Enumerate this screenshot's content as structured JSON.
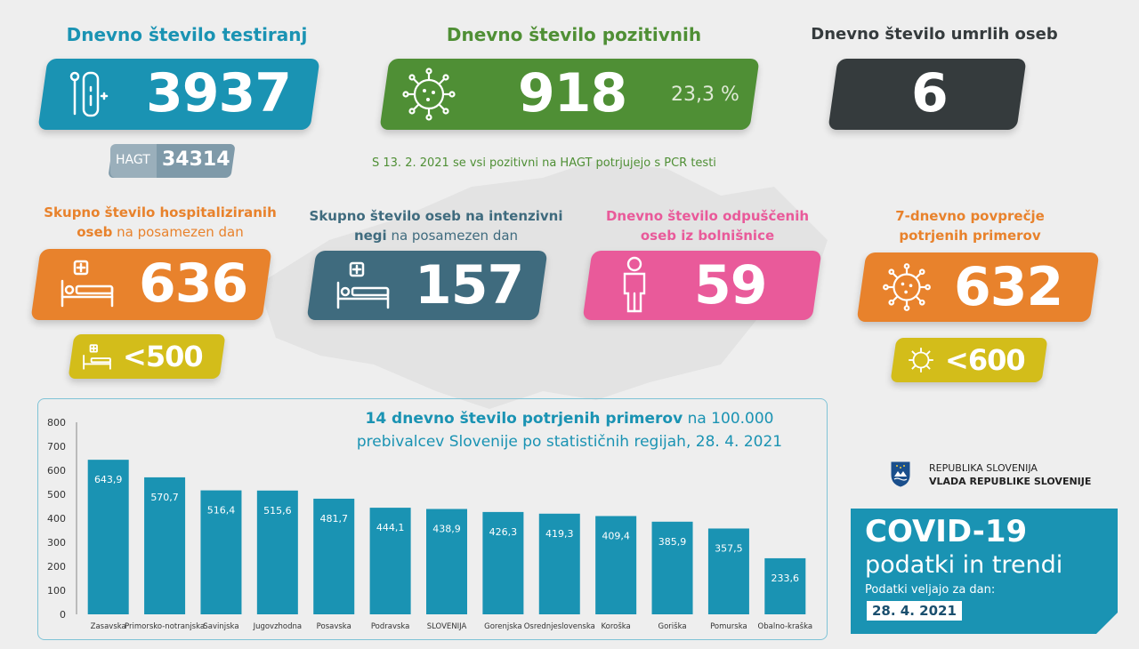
{
  "colors": {
    "blue": "#1a93b3",
    "green": "#4f8f35",
    "dark": "#353b3d",
    "orange": "#e8822c",
    "slate": "#3f6b7e",
    "pink": "#e95a9a",
    "yellow": "#d3bd1a",
    "gray_badge": "#7f9aa9"
  },
  "tests": {
    "title": "Dnevno število testiranj",
    "value": "3937",
    "hagt_label": "HAGT",
    "hagt_value": "34314",
    "icon": "test-kit-icon"
  },
  "positive": {
    "title": "Dnevno število pozitivnih",
    "value": "918",
    "percent": "23,3 %",
    "note": "S 13. 2. 2021 se vsi pozitivni na HAGT potrjujejo s PCR testi",
    "icon": "virus-icon"
  },
  "deaths": {
    "title": "Dnevno število umrlih oseb",
    "value": "6"
  },
  "hospital": {
    "title_bold1": "Skupno število hospitaliziranih",
    "title_bold2": "oseb",
    "title_sub": " na posamezen dan",
    "value": "636",
    "threshold": "<500",
    "icon": "hospital-bed-icon"
  },
  "icu": {
    "title_bold1": "Skupno število oseb na intenzivni",
    "title_bold2": "negi",
    "title_sub": " na posamezen dan",
    "value": "157",
    "icon": "hospital-bed-icon"
  },
  "discharged": {
    "title1": "Dnevno število odpuščenih",
    "title2": "oseb iz bolnišnice",
    "value": "59",
    "icon": "person-icon"
  },
  "avg7": {
    "title1": "7-dnevno povprečje",
    "title2": "potrjenih primerov",
    "value": "632",
    "threshold": "<600",
    "icon": "virus-icon"
  },
  "chart_title": {
    "bold": "14 dnevno število potrjenih primerov",
    "rest": " na 100.000",
    "line2": "prebivalcev Slovenije po statističnih regijah, 28. 4. 2021"
  },
  "chart_data": {
    "type": "bar",
    "categories": [
      "Zasavska",
      "Primorsko-notranjska",
      "Savinjska",
      "Jugovzhodna",
      "Posavska",
      "Podravska",
      "SLOVENIJA",
      "Gorenjska",
      "Osrednjeslovenska",
      "Koroška",
      "Goriška",
      "Pomurska",
      "Obalno-kraška"
    ],
    "values": [
      643.9,
      570.7,
      516.4,
      515.6,
      481.7,
      444.1,
      438.9,
      426.3,
      419.3,
      409.4,
      385.9,
      357.5,
      233.6
    ],
    "labels": [
      "643,9",
      "570,7",
      "516,4",
      "515,6",
      "481,7",
      "444,1",
      "438,9",
      "426,3",
      "419,3",
      "409,4",
      "385,9",
      "357,5",
      "233,6"
    ],
    "yticks": [
      "0",
      "100",
      "200",
      "300",
      "400",
      "500",
      "600",
      "700",
      "800"
    ],
    "ylim": [
      0,
      800
    ],
    "bar_color": "#1a93b3"
  },
  "gov": {
    "line1": "REPUBLIKA SLOVENIJA",
    "line2": "VLADA REPUBLIKE SLOVENIJE",
    "icon": "coat-of-arms-icon"
  },
  "covid": {
    "title": "COVID-19",
    "subtitle": "podatki in trendi",
    "valid": "Podatki veljajo za dan:",
    "date": "28. 4. 2021"
  }
}
